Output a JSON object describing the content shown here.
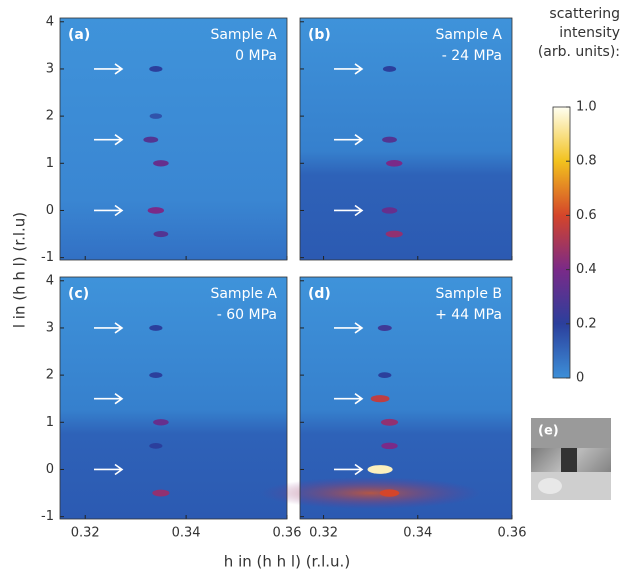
{
  "chart_data": [
    {
      "type": "heatmap",
      "panel_label": "(a)",
      "sample": "Sample A",
      "pressure": "0 MPa",
      "xlim": [
        0.315,
        0.36
      ],
      "ylim": [
        -1.05,
        4.08
      ],
      "xticks": [
        0.32,
        0.34,
        0.36
      ],
      "yticks": [
        -1,
        0,
        1,
        2,
        3,
        4
      ],
      "arrows": [
        3,
        1.5,
        0
      ],
      "x": [
        0.334,
        0.334,
        0.333,
        0.335,
        0.334,
        0.335
      ],
      "y": [
        3,
        2,
        1.5,
        1,
        0,
        -0.5
      ],
      "values": [
        0.2,
        0.15,
        0.3,
        0.35,
        0.4,
        0.3
      ]
    },
    {
      "type": "heatmap",
      "panel_label": "(b)",
      "sample": "Sample A",
      "pressure": "- 24 MPa",
      "xlim": [
        0.315,
        0.36
      ],
      "ylim": [
        -1.05,
        4.08
      ],
      "xticks": [
        0.32,
        0.34,
        0.36
      ],
      "yticks": [
        -1,
        0,
        1,
        2,
        3,
        4
      ],
      "arrows": [
        3,
        1.5,
        0
      ],
      "x": [
        0.334,
        0.334,
        0.335,
        0.334,
        0.335
      ],
      "y": [
        3,
        1.5,
        1,
        0,
        -0.5
      ],
      "values": [
        0.2,
        0.3,
        0.4,
        0.35,
        0.45
      ]
    },
    {
      "type": "heatmap",
      "panel_label": "(c)",
      "sample": "Sample A",
      "pressure": "- 60 MPa",
      "xlim": [
        0.315,
        0.36
      ],
      "ylim": [
        -1.05,
        4.08
      ],
      "xticks": [
        0.32,
        0.34,
        0.36
      ],
      "yticks": [
        -1,
        0,
        1,
        2,
        3,
        4
      ],
      "arrows": [
        3,
        1.5,
        0
      ],
      "x": [
        0.334,
        0.334,
        0.335,
        0.334,
        0.335
      ],
      "y": [
        3,
        2,
        1,
        0.5,
        -0.5
      ],
      "values": [
        0.2,
        0.2,
        0.35,
        0.2,
        0.45
      ]
    },
    {
      "type": "heatmap",
      "panel_label": "(d)",
      "sample": "Sample B",
      "pressure": "+ 44 MPa",
      "xlim": [
        0.315,
        0.36
      ],
      "ylim": [
        -1.05,
        4.08
      ],
      "xticks": [
        0.32,
        0.34,
        0.36
      ],
      "yticks": [
        -1,
        0,
        1,
        2,
        3,
        4
      ],
      "arrows": [
        3,
        1.5,
        0
      ],
      "x": [
        0.333,
        0.333,
        0.332,
        0.334,
        0.334,
        0.332,
        0.334
      ],
      "y": [
        3,
        2,
        1.5,
        1,
        0.5,
        0,
        -0.5
      ],
      "values": [
        0.25,
        0.2,
        0.55,
        0.45,
        0.4,
        0.95,
        0.6
      ]
    }
  ],
  "axes": {
    "xlabel": "h in (h h l)  (r.l.u.)",
    "ylabel": "l in (h h l)  (r.l.u)"
  },
  "colorbar": {
    "title_lines": [
      "scattering",
      "intensity",
      "(arb. units):"
    ],
    "lim": [
      0,
      1
    ],
    "ticks": [
      0,
      0.2,
      0.4,
      0.6,
      0.8,
      {
        "value": 1,
        "label": "1.0"
      }
    ],
    "colors": [
      "#3d8fd8",
      "#2b3f9c",
      "#7a2a88",
      "#d4452a",
      "#f2c21e",
      "#fffff2"
    ]
  },
  "inset_label": "(e)"
}
